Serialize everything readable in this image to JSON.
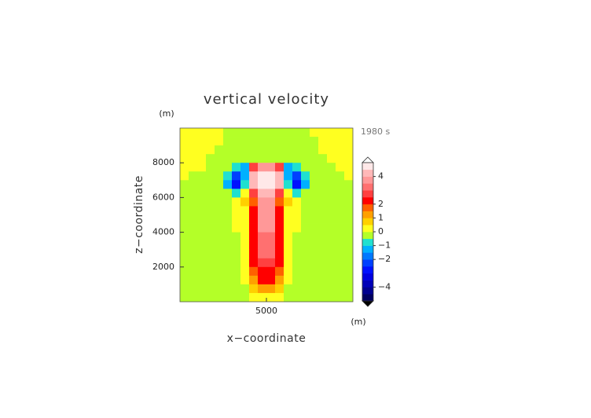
{
  "chart_data": {
    "type": "contour",
    "title": "vertical velocity",
    "x_label": "x−coordinate",
    "y_label": "z−coordinate",
    "x_unit": "(m)",
    "y_unit": "(m)",
    "time_label": "1980 s",
    "xlim": [
      0,
      10000
    ],
    "ylim": [
      0,
      10000
    ],
    "xticks": [
      5000
    ],
    "yticks": [
      2000,
      4000,
      6000,
      8000
    ],
    "x": [
      250,
      750,
      1250,
      1750,
      2250,
      2750,
      3250,
      3750,
      4250,
      4750,
      5250,
      5750,
      6250,
      6750,
      7250,
      7750,
      8250,
      8750,
      9250,
      9750
    ],
    "y": [
      9750,
      9250,
      8750,
      8250,
      7750,
      7250,
      6750,
      6250,
      5750,
      5250,
      4750,
      4250,
      3750,
      3250,
      2750,
      2250,
      1750,
      1250,
      750,
      250
    ],
    "z": [
      [
        0.3,
        0.3,
        0.3,
        0.3,
        0.3,
        -0.2,
        -0.2,
        -0.2,
        -0.2,
        -0.2,
        -0.2,
        -0.2,
        -0.2,
        -0.2,
        -0.2,
        0.3,
        0.3,
        0.3,
        0.3,
        0.3
      ],
      [
        0.3,
        0.3,
        0.3,
        0.3,
        0.3,
        -0.2,
        -0.2,
        -0.2,
        -0.2,
        -0.2,
        -0.2,
        -0.2,
        -0.2,
        -0.2,
        -0.2,
        -0.2,
        0.3,
        0.3,
        0.3,
        0.3
      ],
      [
        0.3,
        0.3,
        0.3,
        0.3,
        -0.2,
        -0.2,
        -0.2,
        -0.2,
        -0.2,
        -0.2,
        -0.2,
        -0.2,
        -0.2,
        -0.2,
        -0.2,
        -0.2,
        0.3,
        0.3,
        0.3,
        0.3
      ],
      [
        0.3,
        0.3,
        0.3,
        -0.2,
        -0.2,
        -0.2,
        -0.2,
        -0.2,
        -0.2,
        -0.2,
        -0.2,
        -0.2,
        -0.2,
        -0.2,
        -0.2,
        -0.2,
        -0.2,
        0.3,
        0.3,
        0.3
      ],
      [
        0.3,
        0.3,
        0.3,
        -0.2,
        -0.2,
        -0.2,
        -0.7,
        -1.2,
        2.5,
        3.5,
        3.5,
        2.5,
        -1.2,
        -0.7,
        -0.2,
        -0.2,
        -0.2,
        -0.2,
        0.3,
        0.3
      ],
      [
        0.3,
        -0.2,
        -0.2,
        -0.2,
        -0.2,
        -0.7,
        -2.2,
        -1.5,
        4.3,
        4.8,
        4.8,
        4.3,
        -1.5,
        -2.2,
        -0.7,
        -0.2,
        -0.2,
        -0.2,
        -0.2,
        0.3
      ],
      [
        -0.2,
        -0.2,
        -0.2,
        -0.2,
        -0.2,
        -1.2,
        -2.8,
        -0.7,
        4.3,
        4.8,
        4.8,
        4.3,
        -0.7,
        -2.8,
        -1.2,
        -0.2,
        -0.2,
        -0.2,
        -0.2,
        -0.2
      ],
      [
        -0.2,
        -0.2,
        -0.2,
        -0.2,
        -0.2,
        -0.2,
        -0.7,
        0.3,
        2.5,
        4.3,
        4.3,
        2.5,
        0.3,
        -0.7,
        -0.2,
        -0.2,
        -0.2,
        -0.2,
        -0.2,
        -0.2
      ],
      [
        -0.2,
        -0.2,
        -0.2,
        -0.2,
        -0.2,
        -0.2,
        0.3,
        0.7,
        1.5,
        3.8,
        3.8,
        1.5,
        0.7,
        0.3,
        -0.2,
        -0.2,
        -0.2,
        -0.2,
        -0.2,
        -0.2
      ],
      [
        -0.2,
        -0.2,
        -0.2,
        -0.2,
        -0.2,
        -0.2,
        0.3,
        0.3,
        2.2,
        3.8,
        3.8,
        2.2,
        0.3,
        0.3,
        -0.2,
        -0.2,
        -0.2,
        -0.2,
        -0.2,
        -0.2
      ],
      [
        -0.2,
        -0.2,
        -0.2,
        -0.2,
        -0.2,
        -0.2,
        0.3,
        0.3,
        2.2,
        3.6,
        3.6,
        2.2,
        0.3,
        0.3,
        -0.2,
        -0.2,
        -0.2,
        -0.2,
        -0.2,
        -0.2
      ],
      [
        -0.2,
        -0.2,
        -0.2,
        -0.2,
        -0.2,
        -0.2,
        0.3,
        0.3,
        2.3,
        3.5,
        3.5,
        2.3,
        0.3,
        0.3,
        -0.2,
        -0.2,
        -0.2,
        -0.2,
        -0.2,
        -0.2
      ],
      [
        -0.2,
        -0.2,
        -0.2,
        -0.2,
        -0.2,
        -0.2,
        -0.2,
        0.3,
        2.3,
        3.3,
        3.3,
        2.3,
        0.3,
        -0.2,
        -0.2,
        -0.2,
        -0.2,
        -0.2,
        -0.2,
        -0.2
      ],
      [
        -0.2,
        -0.2,
        -0.2,
        -0.2,
        -0.2,
        -0.2,
        -0.2,
        0.3,
        2.3,
        3.2,
        3.2,
        2.3,
        0.3,
        -0.2,
        -0.2,
        -0.2,
        -0.2,
        -0.2,
        -0.2,
        -0.2
      ],
      [
        -0.2,
        -0.2,
        -0.2,
        -0.2,
        -0.2,
        -0.2,
        -0.2,
        0.3,
        2.2,
        3.0,
        3.0,
        2.2,
        0.3,
        -0.2,
        -0.2,
        -0.2,
        -0.2,
        -0.2,
        -0.2,
        -0.2
      ],
      [
        -0.2,
        -0.2,
        -0.2,
        -0.2,
        -0.2,
        -0.2,
        -0.2,
        0.3,
        2.2,
        2.8,
        2.8,
        2.2,
        0.3,
        -0.2,
        -0.2,
        -0.2,
        -0.2,
        -0.2,
        -0.2,
        -0.2
      ],
      [
        -0.2,
        -0.2,
        -0.2,
        -0.2,
        -0.2,
        -0.2,
        -0.2,
        0.3,
        1.8,
        2.3,
        2.3,
        1.8,
        0.3,
        -0.2,
        -0.2,
        -0.2,
        -0.2,
        -0.2,
        -0.2,
        -0.2
      ],
      [
        -0.2,
        -0.2,
        -0.2,
        -0.2,
        -0.2,
        -0.2,
        -0.2,
        0.3,
        1.2,
        2.2,
        2.2,
        1.2,
        0.3,
        -0.2,
        -0.2,
        -0.2,
        -0.2,
        -0.2,
        -0.2,
        -0.2
      ],
      [
        -0.2,
        -0.2,
        -0.2,
        -0.2,
        -0.2,
        -0.2,
        -0.2,
        -0.2,
        0.6,
        1.0,
        1.0,
        0.6,
        -0.2,
        -0.2,
        -0.2,
        -0.2,
        -0.2,
        -0.2,
        -0.2,
        -0.2
      ],
      [
        -0.2,
        -0.2,
        -0.2,
        -0.2,
        -0.2,
        -0.2,
        -0.2,
        -0.2,
        0.3,
        0.4,
        0.4,
        0.3,
        -0.2,
        -0.2,
        -0.2,
        -0.2,
        -0.2,
        -0.2,
        -0.2,
        -0.2
      ]
    ],
    "levels": [
      -5,
      -4.5,
      -4,
      -3.5,
      -3,
      -2.5,
      -2,
      -1.5,
      -1,
      -0.5,
      0,
      0.5,
      1,
      1.5,
      2,
      2.5,
      3,
      3.5,
      4,
      4.5,
      5
    ],
    "colors": [
      "#000060",
      "#000090",
      "#0000b8",
      "#0000e0",
      "#0010ff",
      "#0040ff",
      "#0078ff",
      "#00b0ff",
      "#20e0d0",
      "#b4ff28",
      "#ffff20",
      "#ffd000",
      "#ffa000",
      "#ff6000",
      "#ff0000",
      "#ff4040",
      "#ff7070",
      "#ff9898",
      "#ffb8b8",
      "#ffe8e8"
    ],
    "colorbar_ticks": [
      {
        "value": -4,
        "label": "−4"
      },
      {
        "value": -2,
        "label": "−2"
      },
      {
        "value": -1,
        "label": "−1"
      },
      0,
      1,
      2,
      4
    ]
  }
}
